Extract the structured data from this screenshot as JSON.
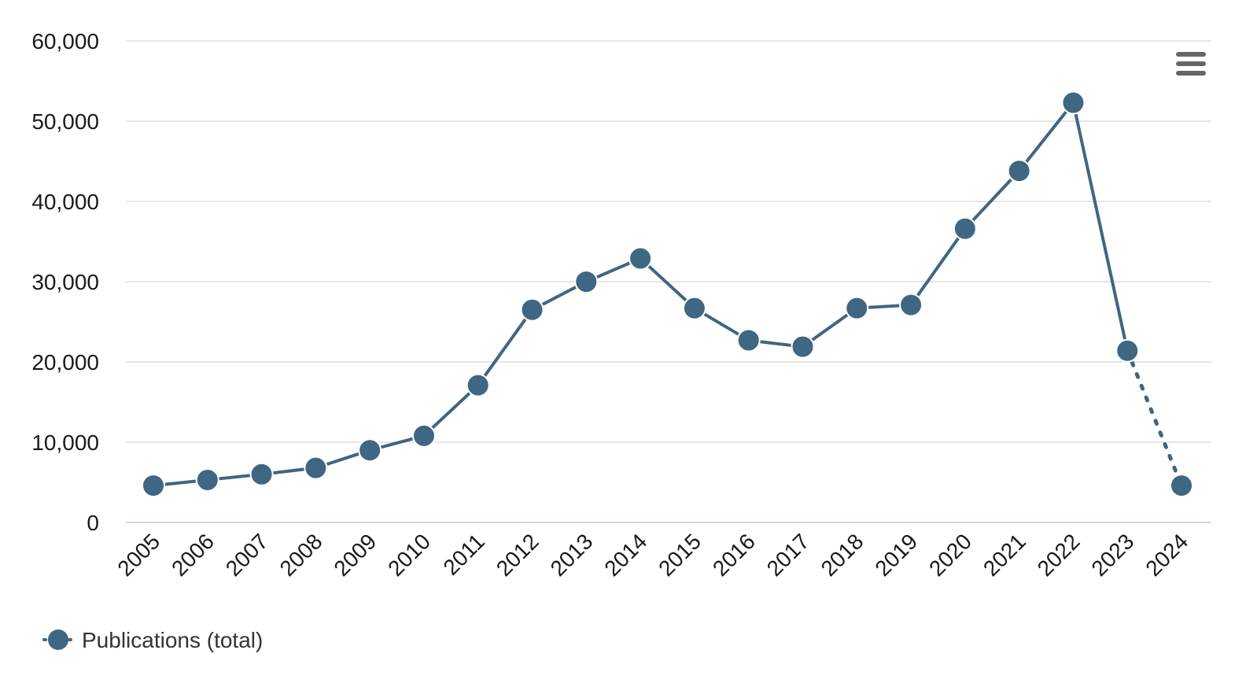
{
  "chart_data": {
    "type": "line",
    "title": "",
    "xlabel": "",
    "ylabel": "",
    "categories": [
      "2005",
      "2006",
      "2007",
      "2008",
      "2009",
      "2010",
      "2011",
      "2012",
      "2013",
      "2014",
      "2015",
      "2016",
      "2017",
      "2018",
      "2019",
      "2020",
      "2021",
      "2022",
      "2023",
      "2024"
    ],
    "y_ticks": [
      "0",
      "10,000",
      "20,000",
      "30,000",
      "40,000",
      "50,000",
      "60,000"
    ],
    "ylim": [
      0,
      60000
    ],
    "grid": true,
    "series": [
      {
        "name": "Publications (total)",
        "color": "#3f6682",
        "values": [
          4600,
          5300,
          6000,
          6800,
          9000,
          10800,
          17100,
          26500,
          30000,
          32900,
          26700,
          22700,
          21900,
          26700,
          27100,
          36600,
          43800,
          52300,
          21400,
          4600
        ],
        "dotted_last_segment": true
      }
    ],
    "legend_position": "bottom-left"
  },
  "menu": {
    "icon": "hamburger-menu-icon"
  }
}
